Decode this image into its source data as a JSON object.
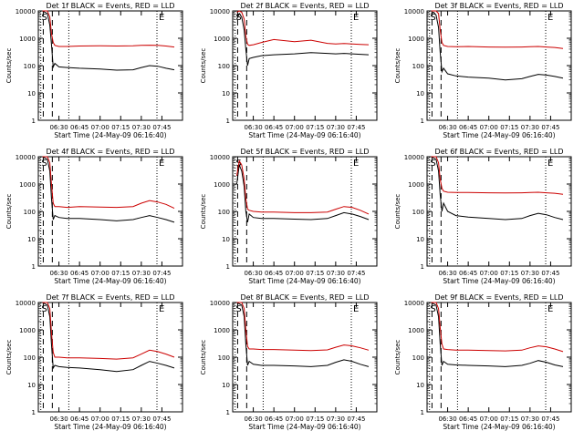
{
  "colors": {
    "events": "#000000",
    "lld": "#cc0000",
    "axis": "#000000",
    "background": "#ffffff"
  },
  "chart_data": {
    "type": "line",
    "yscale": "log",
    "ylim": [
      1,
      10000
    ],
    "y_ticks": [
      1,
      10,
      100,
      1000,
      10000
    ],
    "y_tick_labels": [
      "1",
      "10",
      "100",
      "1000",
      "10000"
    ],
    "xlim": [
      6.25,
      8.0
    ],
    "x_ticks": [
      6.5,
      6.75,
      7.0,
      7.25,
      7.5,
      7.75
    ],
    "x_tick_labels": [
      "06:30",
      "06:45",
      "07:00",
      "07:15",
      "07:30",
      "07:45"
    ],
    "ylabel": "Counts/sec",
    "xlabel": "Start Time (24-May-09 06:16:40)",
    "annotations": {
      "left_marker": "S",
      "right_marker": "E",
      "dashed_lines_x": [
        6.31,
        6.42
      ],
      "dotted_lines_x": [
        6.62,
        7.69
      ],
      "left_dotted_x": 6.28
    },
    "panels": [
      {
        "title": "Det 1f BLACK = Events, RED = LLD",
        "series": [
          {
            "name": "Events",
            "color": "black",
            "x": [
              6.3,
              6.33,
              6.36,
              6.39,
              6.41,
              6.43,
              6.45,
              6.5,
              6.6,
              6.75,
              7.0,
              7.2,
              7.4,
              7.5,
              7.6,
              7.7,
              7.8,
              7.9
            ],
            "y": [
              10000,
              9000,
              8000,
              3000,
              600,
              90,
              120,
              90,
              85,
              80,
              75,
              68,
              70,
              85,
              100,
              95,
              80,
              70
            ]
          },
          {
            "name": "LLD",
            "color": "red",
            "x": [
              6.3,
              6.33,
              6.36,
              6.39,
              6.41,
              6.43,
              6.45,
              6.5,
              6.6,
              6.75,
              7.0,
              7.2,
              7.4,
              7.5,
              7.6,
              7.7,
              7.8,
              7.9
            ],
            "y": [
              10000,
              10000,
              10000,
              6000,
              1500,
              700,
              550,
              500,
              500,
              520,
              530,
              520,
              530,
              550,
              560,
              550,
              520,
              480
            ]
          }
        ]
      },
      {
        "title": "Det 2f BLACK = Events, RED = LLD",
        "series": [
          {
            "name": "Events",
            "color": "black",
            "x": [
              6.3,
              6.33,
              6.36,
              6.39,
              6.41,
              6.43,
              6.45,
              6.5,
              6.6,
              6.75,
              7.0,
              7.2,
              7.4,
              7.5,
              7.6,
              7.7,
              7.8,
              7.9
            ],
            "y": [
              5000,
              8000,
              6000,
              2000,
              400,
              100,
              180,
              200,
              230,
              250,
              270,
              300,
              280,
              270,
              280,
              270,
              260,
              250
            ]
          },
          {
            "name": "LLD",
            "color": "red",
            "x": [
              6.3,
              6.33,
              6.36,
              6.39,
              6.41,
              6.43,
              6.45,
              6.5,
              6.6,
              6.75,
              7.0,
              7.2,
              7.4,
              7.5,
              7.6,
              7.7,
              7.8,
              7.9
            ],
            "y": [
              9000,
              10000,
              9000,
              5000,
              1200,
              600,
              550,
              580,
              700,
              900,
              750,
              850,
              650,
              620,
              640,
              620,
              600,
              580
            ]
          }
        ]
      },
      {
        "title": "Det 3f BLACK = Events, RED = LLD",
        "series": [
          {
            "name": "Events",
            "color": "black",
            "x": [
              6.3,
              6.33,
              6.36,
              6.39,
              6.41,
              6.43,
              6.45,
              6.5,
              6.6,
              6.75,
              7.0,
              7.2,
              7.4,
              7.5,
              7.6,
              7.7,
              7.8,
              7.9
            ],
            "y": [
              8000,
              9000,
              7000,
              2500,
              300,
              60,
              80,
              50,
              42,
              38,
              35,
              30,
              33,
              40,
              48,
              45,
              40,
              35
            ]
          },
          {
            "name": "LLD",
            "color": "red",
            "x": [
              6.3,
              6.33,
              6.36,
              6.39,
              6.41,
              6.43,
              6.45,
              6.5,
              6.6,
              6.75,
              7.0,
              7.2,
              7.4,
              7.5,
              7.6,
              7.7,
              7.8,
              7.9
            ],
            "y": [
              10000,
              10000,
              10000,
              8000,
              2000,
              700,
              550,
              500,
              490,
              500,
              480,
              470,
              480,
              490,
              500,
              480,
              460,
              420
            ]
          }
        ]
      },
      {
        "title": "Det 4f BLACK = Events, RED = LLD",
        "series": [
          {
            "name": "Events",
            "color": "black",
            "x": [
              6.3,
              6.33,
              6.36,
              6.39,
              6.41,
              6.43,
              6.45,
              6.5,
              6.6,
              6.75,
              7.0,
              7.2,
              7.4,
              7.5,
              7.6,
              7.7,
              7.8,
              7.9
            ],
            "y": [
              10000,
              9000,
              8000,
              3000,
              300,
              50,
              70,
              60,
              55,
              55,
              50,
              45,
              50,
              60,
              70,
              60,
              50,
              40
            ]
          },
          {
            "name": "LLD",
            "color": "red",
            "x": [
              6.3,
              6.33,
              6.36,
              6.39,
              6.41,
              6.43,
              6.45,
              6.5,
              6.6,
              6.75,
              7.0,
              7.2,
              7.4,
              7.5,
              7.6,
              7.7,
              7.8,
              7.9
            ],
            "y": [
              10000,
              10000,
              10000,
              6000,
              1000,
              200,
              150,
              150,
              140,
              150,
              145,
              140,
              150,
              200,
              250,
              220,
              180,
              130
            ]
          }
        ]
      },
      {
        "title": "Det 5f BLACK = Events, RED = LLD",
        "series": [
          {
            "name": "Events",
            "color": "black",
            "x": [
              6.3,
              6.33,
              6.36,
              6.39,
              6.41,
              6.43,
              6.45,
              6.5,
              6.6,
              6.75,
              7.0,
              7.2,
              7.4,
              7.5,
              7.6,
              7.7,
              7.8,
              7.9
            ],
            "y": [
              1000,
              5000,
              3000,
              800,
              100,
              40,
              80,
              60,
              55,
              55,
              52,
              50,
              55,
              70,
              90,
              80,
              65,
              50
            ]
          },
          {
            "name": "LLD",
            "color": "red",
            "x": [
              6.3,
              6.33,
              6.36,
              6.39,
              6.41,
              6.43,
              6.45,
              6.5,
              6.6,
              6.75,
              7.0,
              7.2,
              7.4,
              7.5,
              7.6,
              7.7,
              7.8,
              7.9
            ],
            "y": [
              2000,
              7000,
              5000,
              1500,
              300,
              120,
              110,
              100,
              95,
              95,
              90,
              90,
              95,
              120,
              150,
              140,
              110,
              80
            ]
          }
        ]
      },
      {
        "title": "Det 6f BLACK = Events, RED = LLD",
        "series": [
          {
            "name": "Events",
            "color": "black",
            "x": [
              6.3,
              6.33,
              6.36,
              6.39,
              6.41,
              6.43,
              6.45,
              6.5,
              6.6,
              6.75,
              7.0,
              7.2,
              7.4,
              7.5,
              7.6,
              7.7,
              7.8,
              7.9
            ],
            "y": [
              10000,
              9000,
              8000,
              3000,
              400,
              100,
              200,
              100,
              70,
              62,
              55,
              50,
              55,
              70,
              85,
              75,
              60,
              50
            ]
          },
          {
            "name": "LLD",
            "color": "red",
            "x": [
              6.3,
              6.33,
              6.36,
              6.39,
              6.41,
              6.43,
              6.45,
              6.5,
              6.6,
              6.75,
              7.0,
              7.2,
              7.4,
              7.5,
              7.6,
              7.7,
              7.8,
              7.9
            ],
            "y": [
              10000,
              10000,
              10000,
              6000,
              1500,
              700,
              550,
              500,
              490,
              490,
              480,
              470,
              480,
              490,
              500,
              480,
              460,
              420
            ]
          }
        ]
      },
      {
        "title": "Det 7f BLACK = Events, RED = LLD",
        "series": [
          {
            "name": "Events",
            "color": "black",
            "x": [
              6.3,
              6.33,
              6.36,
              6.39,
              6.41,
              6.43,
              6.45,
              6.5,
              6.6,
              6.75,
              7.0,
              7.2,
              7.4,
              7.5,
              7.6,
              7.7,
              7.8,
              7.9
            ],
            "y": [
              10000,
              9000,
              8000,
              3000,
              300,
              40,
              50,
              45,
              42,
              40,
              35,
              30,
              35,
              50,
              70,
              60,
              50,
              40
            ]
          },
          {
            "name": "LLD",
            "color": "red",
            "x": [
              6.3,
              6.33,
              6.36,
              6.39,
              6.41,
              6.43,
              6.45,
              6.5,
              6.6,
              6.75,
              7.0,
              7.2,
              7.4,
              7.5,
              7.6,
              7.7,
              7.8,
              7.9
            ],
            "y": [
              10000,
              10000,
              10000,
              6000,
              800,
              150,
              100,
              100,
              95,
              95,
              90,
              85,
              95,
              130,
              180,
              160,
              130,
              100
            ]
          }
        ]
      },
      {
        "title": "Det 8f BLACK = Events, RED = LLD",
        "series": [
          {
            "name": "Events",
            "color": "black",
            "x": [
              6.3,
              6.33,
              6.36,
              6.39,
              6.41,
              6.43,
              6.45,
              6.5,
              6.6,
              6.75,
              7.0,
              7.2,
              7.4,
              7.5,
              7.6,
              7.7,
              7.8,
              7.9
            ],
            "y": [
              10000,
              9000,
              8000,
              3000,
              300,
              50,
              70,
              55,
              50,
              50,
              48,
              45,
              50,
              65,
              80,
              70,
              55,
              45
            ]
          },
          {
            "name": "LLD",
            "color": "red",
            "x": [
              6.3,
              6.33,
              6.36,
              6.39,
              6.41,
              6.43,
              6.45,
              6.5,
              6.6,
              6.75,
              7.0,
              7.2,
              7.4,
              7.5,
              7.6,
              7.7,
              7.8,
              7.9
            ],
            "y": [
              10000,
              10000,
              10000,
              6000,
              1000,
              250,
              200,
              200,
              190,
              190,
              180,
              175,
              185,
              230,
              280,
              260,
              220,
              180
            ]
          }
        ]
      },
      {
        "title": "Det 9f BLACK = Events, RED = LLD",
        "series": [
          {
            "name": "Events",
            "color": "black",
            "x": [
              6.3,
              6.33,
              6.36,
              6.39,
              6.41,
              6.43,
              6.45,
              6.5,
              6.6,
              6.75,
              7.0,
              7.2,
              7.4,
              7.5,
              7.6,
              7.7,
              7.8,
              7.9
            ],
            "y": [
              10000,
              9000,
              8000,
              3000,
              300,
              50,
              70,
              55,
              52,
              50,
              48,
              45,
              50,
              60,
              75,
              65,
              52,
              45
            ]
          },
          {
            "name": "LLD",
            "color": "red",
            "x": [
              6.3,
              6.33,
              6.36,
              6.39,
              6.41,
              6.43,
              6.45,
              6.5,
              6.6,
              6.75,
              7.0,
              7.2,
              7.4,
              7.5,
              7.6,
              7.7,
              7.8,
              7.9
            ],
            "y": [
              10000,
              10000,
              10000,
              6000,
              1200,
              300,
              200,
              190,
              180,
              180,
              175,
              170,
              180,
              220,
              260,
              240,
              200,
              160
            ]
          }
        ]
      }
    ]
  }
}
